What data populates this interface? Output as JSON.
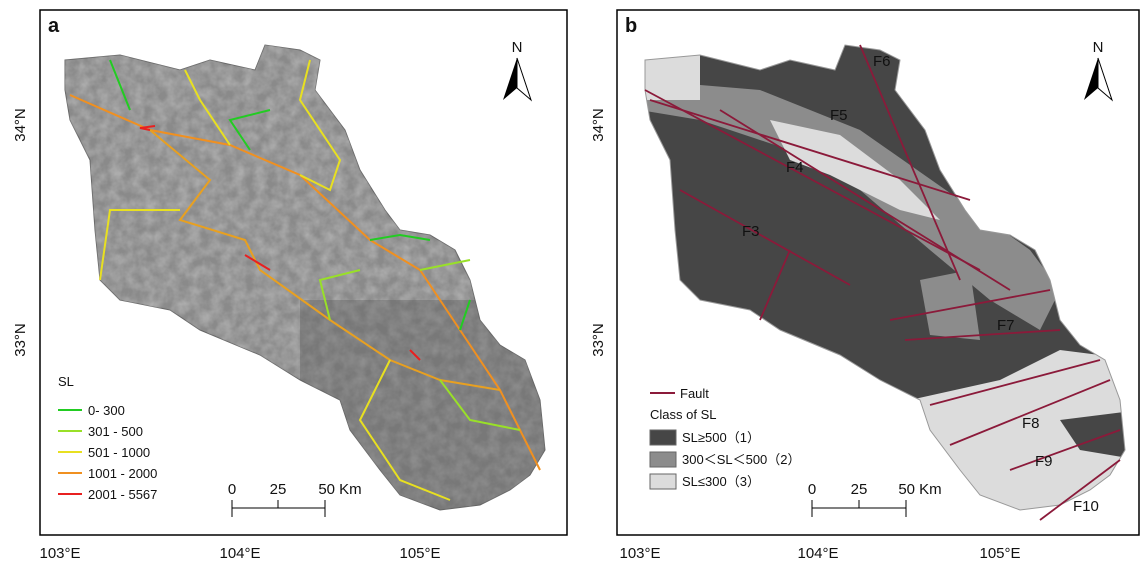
{
  "panels": [
    {
      "label": "a",
      "north": "N",
      "x_ticks": [
        "103°E",
        "104°E",
        "105°E"
      ],
      "y_ticks": [
        "34°N",
        "33°N"
      ],
      "legend": {
        "title": "SL",
        "items": [
          {
            "label": "0- 300",
            "color": "#22cc22"
          },
          {
            "label": "301 - 500",
            "color": "#99e028"
          },
          {
            "label": "501 - 1000",
            "color": "#e8e020"
          },
          {
            "label": "1001 - 2000",
            "color": "#f09020"
          },
          {
            "label": "2001 - 5567",
            "color": "#e82020"
          }
        ]
      },
      "scale_bar": [
        "0",
        "25",
        "50 Km"
      ]
    },
    {
      "label": "b",
      "north": "N",
      "x_ticks": [
        "103°E",
        "104°E",
        "105°E"
      ],
      "y_ticks": [
        "34°N",
        "33°N"
      ],
      "legend": {
        "fault": {
          "label": "Fault",
          "color": "#8b1a3a"
        },
        "title": "Class of SL",
        "items": [
          {
            "label": "SL≥500（1）",
            "color": "#464646"
          },
          {
            "label": "300＜SL＜500（2）",
            "color": "#8c8c8c"
          },
          {
            "label": "SL≤300（3）",
            "color": "#dcdcdc"
          }
        ]
      },
      "scale_bar": [
        "0",
        "25",
        "50 Km"
      ],
      "fault_labels": [
        "F3",
        "F4",
        "F5",
        "F6",
        "F7",
        "F8",
        "F9",
        "F10"
      ]
    }
  ]
}
